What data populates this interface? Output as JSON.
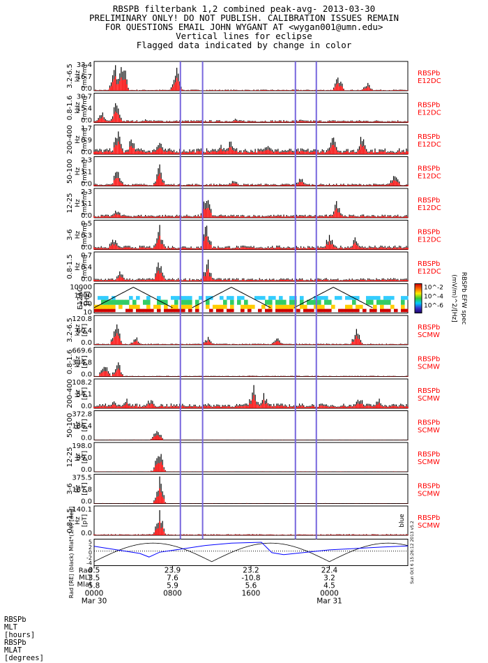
{
  "header": {
    "title": "RBSPB filterbank 1,2 combined peak-avg- 2013-03-30",
    "line2": "PRELIMINARY ONLY! DO NOT PUBLISH. CALIBRATION ISSUES REMAIN",
    "line3": "FOR QUESTIONS EMAIL JOHN WYGANT AT <wygan001@umn.edu>",
    "line4": "Vertical lines for eclipse",
    "line5": "Flagged data indicated by change in color"
  },
  "colors": {
    "peak": "#000000",
    "avg": "#ff0000",
    "eclipse": "#7766dd",
    "frame": "#000000",
    "label_red": "#ff0000",
    "mlt": "#000000",
    "mlat": "#0000ff"
  },
  "chart_data": {
    "type": "line",
    "x_range_hours": [
      0,
      24
    ],
    "eclipse_hours": [
      6.6,
      8.3,
      15.4,
      17.0
    ],
    "panels": [
      {
        "freq": "3.2-6.5",
        "unit1": "kHz",
        "unit2": "[mV/m]",
        "ticks": [
          "33.4",
          "16.7",
          "0.0"
        ],
        "ymax": 33.4,
        "inst": "RBSPb",
        "instrument": "E12DC",
        "events": [
          [
            1.6,
            1.0
          ],
          [
            2.2,
            1.2
          ],
          [
            6.3,
            0.9
          ],
          [
            18.7,
            0.6
          ],
          [
            20.9,
            0.3
          ]
        ],
        "bg": 0.03
      },
      {
        "freq": "0.8-1.6",
        "unit1": "kHz",
        "unit2": "[mV/m]",
        "ticks": [
          "30.7",
          "15.4",
          "0.0"
        ],
        "ymax": 30.7,
        "inst": "RBSPb",
        "instrument": "E12DC",
        "events": [
          [
            0.6,
            0.4
          ],
          [
            1.7,
            0.9
          ],
          [
            4.0,
            0.15
          ],
          [
            10.8,
            0.15
          ],
          [
            15.8,
            0.12
          ]
        ],
        "bg": 0.06
      },
      {
        "freq": "200-400",
        "unit1": "Hz",
        "unit2": "[mV/m]",
        "ticks": [
          "1.7",
          "0.9",
          "0.0"
        ],
        "ymax": 1.7,
        "inst": "RBSPb",
        "instrument": "E12DC",
        "events": [
          [
            1.8,
            1.0
          ],
          [
            2.9,
            0.7
          ],
          [
            5.0,
            0.6
          ],
          [
            9.7,
            0.4
          ],
          [
            10.5,
            0.6
          ],
          [
            13.3,
            0.55
          ],
          [
            18.3,
            0.7
          ],
          [
            20.5,
            0.8
          ]
        ],
        "bg": 0.15
      },
      {
        "freq": "50-100",
        "unit1": "Hz",
        "unit2": "[mV/m]",
        "ticks": [
          "2.3",
          "1.1",
          "0.0"
        ],
        "ymax": 2.3,
        "inst": "RBSPb",
        "instrument": "E12DC",
        "events": [
          [
            1.8,
            0.8
          ],
          [
            5.0,
            0.8
          ],
          [
            10.7,
            0.3
          ],
          [
            15.8,
            0.35
          ],
          [
            23.0,
            0.6
          ]
        ],
        "bg": 0.06
      },
      {
        "freq": "12-25",
        "unit1": "Hz",
        "unit2": "[mV/m]",
        "ticks": [
          "2.3",
          "1.1",
          "0.0"
        ],
        "ymax": 2.3,
        "inst": "RBSPb",
        "instrument": "E12DC",
        "events": [
          [
            1.7,
            0.4
          ],
          [
            8.6,
            1.0
          ],
          [
            18.6,
            0.7
          ]
        ],
        "bg": 0.08
      },
      {
        "freq": "3-6",
        "unit1": "Hz",
        "unit2": "[mV/m]",
        "ticks": [
          "0.5",
          "0.3",
          "0.0"
        ],
        "ymax": 0.5,
        "inst": "RBSPb",
        "instrument": "E12DC",
        "events": [
          [
            1.5,
            0.5
          ],
          [
            5.0,
            0.9
          ],
          [
            8.6,
            1.0
          ],
          [
            18.0,
            0.6
          ],
          [
            20.0,
            0.5
          ]
        ],
        "bg": 0.1
      },
      {
        "freq": "0.8-1.5",
        "unit1": "Hz",
        "unit2": "[mV/m]",
        "ticks": [
          "0.7",
          "0.4",
          "0.0"
        ],
        "ymax": 0.7,
        "inst": "RBSPb",
        "instrument": "E12DC",
        "events": [
          [
            2.0,
            0.4
          ],
          [
            5.0,
            0.85
          ],
          [
            8.7,
            0.8
          ]
        ],
        "bg": 0.08
      },
      {
        "spectrogram": true,
        "freq": "E12AC",
        "unit1": "[Hz]",
        "unit2": "",
        "ticks": [
          "10000",
          "1000",
          "100",
          "10"
        ],
        "ymax": 10000
      },
      {
        "freq": "3.2-6.5",
        "unit1": "kHz",
        "unit2": "[pT]",
        "ticks": [
          "120.8",
          "60.4",
          "0.0"
        ],
        "ymax": 120.8,
        "inst": "RBSPb",
        "instrument": "SCMW",
        "events": [
          [
            1.7,
            1.0
          ],
          [
            3.2,
            0.3
          ],
          [
            8.7,
            0.3
          ],
          [
            14.0,
            0.3
          ],
          [
            20.1,
            0.7
          ]
        ],
        "bg": 0.03
      },
      {
        "freq": "0.8-1.6",
        "unit1": "kHz",
        "unit2": "[pT]",
        "ticks": [
          "669.6",
          "334.8",
          "0.0"
        ],
        "ymax": 669.6,
        "inst": "RBSPb",
        "instrument": "SCMW",
        "events": [
          [
            0.8,
            0.55
          ],
          [
            1.8,
            0.6
          ],
          [
            12.0,
            0.05
          ]
        ],
        "bg": 0.02
      },
      {
        "freq": "200-400",
        "unit1": "Hz",
        "unit2": "[pT]",
        "ticks": [
          "108.2",
          "54.1",
          "0.0"
        ],
        "ymax": 108.2,
        "inst": "RBSPb",
        "instrument": "SCMW",
        "events": [
          [
            1.5,
            0.3
          ],
          [
            2.5,
            0.35
          ],
          [
            4.3,
            0.4
          ],
          [
            12.2,
            0.85
          ],
          [
            13.0,
            0.6
          ],
          [
            20.3,
            0.5
          ],
          [
            21.8,
            0.4
          ]
        ],
        "bg": 0.12
      },
      {
        "freq": "50-100",
        "unit1": "Hz",
        "unit2": "[pT]",
        "ticks": [
          "372.8",
          "186.4",
          "0.0"
        ],
        "ymax": 372.8,
        "inst": "RBSPb",
        "instrument": "SCMW",
        "events": [
          [
            4.8,
            0.6
          ]
        ],
        "bg": 0.01
      },
      {
        "freq": "12-25",
        "unit1": "Hz",
        "unit2": "[pT]",
        "ticks": [
          "198.0",
          "99.0",
          "0.0"
        ],
        "ymax": 198.0,
        "inst": "RBSPb",
        "instrument": "SCMW",
        "events": [
          [
            5.0,
            1.0
          ],
          [
            4.7,
            0.12
          ]
        ],
        "bg": 0.01
      },
      {
        "freq": "3-6",
        "unit1": "Hz",
        "unit2": "[pT]",
        "ticks": [
          "375.5",
          "187.8",
          "0.0"
        ],
        "ymax": 375.5,
        "inst": "RBSPb",
        "instrument": "SCMW",
        "events": [
          [
            5.0,
            1.0
          ]
        ],
        "bg": 0.01
      },
      {
        "freq": "0.8-1.5",
        "unit1": "Hz",
        "unit2": "[pT]",
        "ticks": [
          "140.1",
          "0.0"
        ],
        "ymax": 140.1,
        "inst": "RBSPb",
        "instrument": "SCMW",
        "events": [
          [
            5.0,
            0.95
          ]
        ],
        "bg": 0.03,
        "side_label": "blue"
      }
    ],
    "spectrogram_colorbar": {
      "ticks": [
        "10^-2",
        "10^-4",
        "10^-6"
      ],
      "label": "(mV/m)^2/[Hz]",
      "side": "RBSPb EFW spec"
    },
    "orbit_panel": {
      "ylabel": "Rad [RE] (black) Mlat*(1/6) [deg]",
      "ticks": [
        "5",
        "2",
        "0",
        "-2",
        "-4"
      ],
      "stamp": "Sun Oct 6 15:26:12 2013 v5.2",
      "mlat_series": [
        [
          0,
          1.2
        ],
        [
          3.5,
          -0.6
        ],
        [
          4.2,
          -1.5
        ],
        [
          5.0,
          -0.3
        ],
        [
          8.5,
          1.4
        ],
        [
          10.5,
          2.0
        ],
        [
          12.8,
          2.2
        ],
        [
          13.6,
          -0.4
        ],
        [
          14.5,
          -0.9
        ],
        [
          18,
          0.3
        ],
        [
          22,
          1.0
        ],
        [
          24,
          1.3
        ]
      ]
    }
  },
  "footer": {
    "labels": [
      "RBSPb",
      "MLT",
      "[hours]",
      "RBSPb",
      "MLAT",
      "[degrees]"
    ],
    "columns": [
      {
        "hour": 0,
        "rad": "0.5",
        "mlt": "3.5",
        "mlat": "5.8",
        "time": "0000",
        "date": "Mar 30"
      },
      {
        "hour": 6,
        "rad": "23.9",
        "mlt": "7.6",
        "mlat": "5.9",
        "time": "0800",
        "date": ""
      },
      {
        "hour": 12,
        "rad": "23.2",
        "mlt": "-10.8",
        "mlat": "5.6",
        "time": "1600",
        "date": ""
      },
      {
        "hour": 18,
        "rad": "22.4",
        "mlt": "3.2",
        "mlat": "4.5",
        "time": "0000",
        "date": "Mar 31"
      }
    ],
    "row_tags": [
      "Rad",
      "MLT",
      "Mlat"
    ]
  }
}
